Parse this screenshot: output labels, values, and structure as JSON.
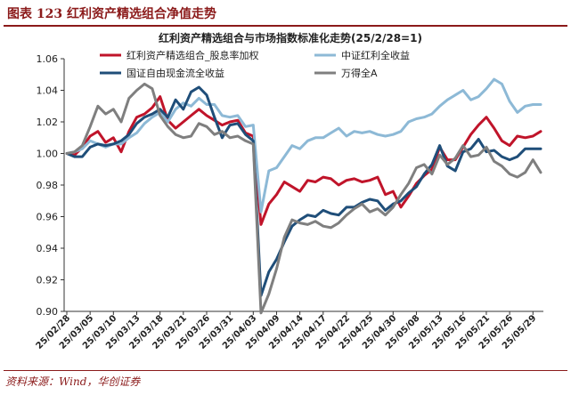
{
  "header": {
    "figure_label": "图表 123 红利资产精选组合净值走势"
  },
  "footer": {
    "source": "资料来源：Wind，华创证券"
  },
  "chart_data": {
    "type": "line",
    "title": "红利资产精选组合与市场指数标准化走势(25/2/28=1)",
    "xlabel": "",
    "ylabel": "",
    "ylim": [
      0.9,
      1.06
    ],
    "yticks": [
      0.9,
      0.92,
      0.94,
      0.96,
      0.98,
      1.0,
      1.02,
      1.04,
      1.06
    ],
    "legend_position": "top",
    "grid": false,
    "x": [
      "25/02/28",
      "25/03/03",
      "25/03/04",
      "25/03/05",
      "25/03/06",
      "25/03/07",
      "25/03/10",
      "25/03/11",
      "25/03/12",
      "25/03/13",
      "25/03/14",
      "25/03/17",
      "25/03/18",
      "25/03/19",
      "25/03/20",
      "25/03/21",
      "25/03/24",
      "25/03/25",
      "25/03/26",
      "25/03/27",
      "25/03/28",
      "25/03/31",
      "25/04/01",
      "25/04/02",
      "25/04/03",
      "25/04/07",
      "25/04/08",
      "25/04/09",
      "25/04/10",
      "25/04/11",
      "25/04/14",
      "25/04/15",
      "25/04/16",
      "25/04/17",
      "25/04/18",
      "25/04/21",
      "25/04/22",
      "25/04/23",
      "25/04/24",
      "25/04/25",
      "25/04/28",
      "25/04/29",
      "25/04/30",
      "25/05/06",
      "25/05/07",
      "25/05/08",
      "25/05/09",
      "25/05/12",
      "25/05/13",
      "25/05/14",
      "25/05/15",
      "25/05/16",
      "25/05/19",
      "25/05/20",
      "25/05/21",
      "25/05/22",
      "25/05/23",
      "25/05/26",
      "25/05/27",
      "25/05/28",
      "25/05/29",
      "25/05/30"
    ],
    "xtick_labels": [
      "25/02/28",
      "25/03/05",
      "25/03/10",
      "25/03/13",
      "25/03/18",
      "25/03/21",
      "25/03/26",
      "25/03/31",
      "25/04/03",
      "25/04/09",
      "25/04/14",
      "25/04/17",
      "25/04/22",
      "25/04/25",
      "25/04/30",
      "25/05/08",
      "25/05/13",
      "25/05/16",
      "25/05/21",
      "25/05/26",
      "25/05/29"
    ],
    "series": [
      {
        "name": "红利资产精选组合_股息率加权",
        "color": "#C0142A",
        "values": [
          1.0,
          0.999,
          1.004,
          1.011,
          1.014,
          1.007,
          1.01,
          1.001,
          1.014,
          1.023,
          1.025,
          1.029,
          1.036,
          1.021,
          1.016,
          1.02,
          1.024,
          1.028,
          1.024,
          1.021,
          1.018,
          1.02,
          1.021,
          1.013,
          1.011,
          0.955,
          0.968,
          0.974,
          0.982,
          0.979,
          0.976,
          0.983,
          0.982,
          0.985,
          0.984,
          0.98,
          0.983,
          0.984,
          0.982,
          0.983,
          0.985,
          0.974,
          0.976,
          0.966,
          0.973,
          0.981,
          0.986,
          0.99,
          1.004,
          0.996,
          0.996,
          1.004,
          1.012,
          1.018,
          1.023,
          1.016,
          1.008,
          1.005,
          1.011,
          1.01,
          1.011,
          1.014
        ]
      },
      {
        "name": "中证红利全收益",
        "color": "#8DB9D6",
        "values": [
          1.0,
          1.001,
          1.003,
          1.008,
          1.006,
          1.004,
          1.006,
          1.006,
          1.01,
          1.013,
          1.019,
          1.023,
          1.026,
          1.02,
          1.028,
          1.032,
          1.03,
          1.035,
          1.031,
          1.031,
          1.024,
          1.023,
          1.024,
          1.017,
          1.018,
          0.963,
          0.989,
          0.991,
          0.998,
          1.005,
          1.003,
          1.008,
          1.01,
          1.01,
          1.013,
          1.016,
          1.011,
          1.014,
          1.013,
          1.014,
          1.012,
          1.011,
          1.012,
          1.014,
          1.02,
          1.022,
          1.023,
          1.025,
          1.03,
          1.034,
          1.037,
          1.04,
          1.034,
          1.036,
          1.041,
          1.047,
          1.044,
          1.033,
          1.026,
          1.03,
          1.031,
          1.031
        ]
      },
      {
        "name": "国证自由现金流全收益",
        "color": "#1F4E79",
        "values": [
          1.0,
          0.998,
          0.998,
          1.004,
          1.006,
          1.005,
          1.006,
          1.008,
          1.012,
          1.019,
          1.023,
          1.025,
          1.028,
          1.023,
          1.034,
          1.028,
          1.039,
          1.042,
          1.037,
          1.023,
          1.01,
          1.018,
          1.019,
          1.012,
          1.008,
          0.91,
          0.925,
          0.933,
          0.944,
          0.954,
          0.958,
          0.961,
          0.96,
          0.964,
          0.962,
          0.961,
          0.966,
          0.966,
          0.969,
          0.971,
          0.97,
          0.964,
          0.968,
          0.97,
          0.975,
          0.979,
          0.987,
          0.993,
          1.005,
          0.992,
          0.989,
          1.001,
          1.003,
          1.009,
          1.001,
          1.002,
          0.998,
          0.996,
          0.998,
          1.003,
          1.003,
          1.003
        ]
      },
      {
        "name": "万得全A",
        "color": "#7F7F7F",
        "values": [
          1.0,
          1.001,
          1.005,
          1.017,
          1.03,
          1.025,
          1.028,
          1.02,
          1.035,
          1.04,
          1.044,
          1.041,
          1.024,
          1.017,
          1.012,
          1.01,
          1.011,
          1.019,
          1.017,
          1.012,
          1.014,
          1.01,
          1.011,
          1.008,
          1.006,
          0.899,
          0.911,
          0.927,
          0.947,
          0.958,
          0.956,
          0.955,
          0.957,
          0.954,
          0.953,
          0.956,
          0.961,
          0.965,
          0.968,
          0.963,
          0.965,
          0.961,
          0.966,
          0.974,
          0.981,
          0.991,
          0.993,
          0.987,
          0.999,
          0.993,
          0.997,
          1.005,
          0.998,
          0.999,
          1.004,
          0.995,
          0.992,
          0.987,
          0.985,
          0.988,
          0.996,
          0.988
        ]
      }
    ]
  }
}
